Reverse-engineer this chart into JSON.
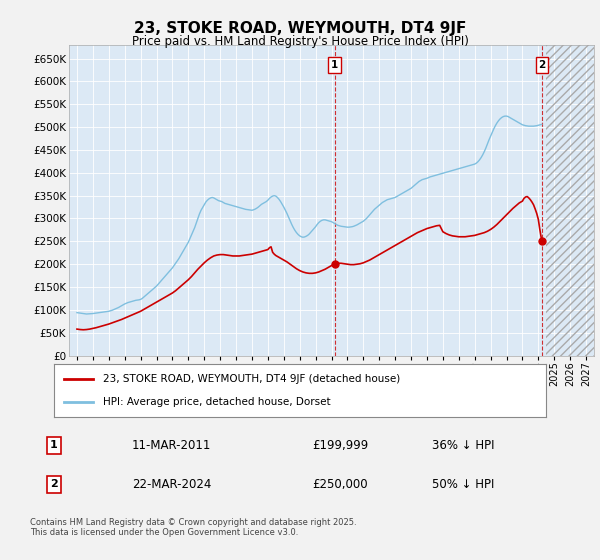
{
  "title": "23, STOKE ROAD, WEYMOUTH, DT4 9JF",
  "subtitle": "Price paid vs. HM Land Registry's House Price Index (HPI)",
  "legend_line1": "23, STOKE ROAD, WEYMOUTH, DT4 9JF (detached house)",
  "legend_line2": "HPI: Average price, detached house, Dorset",
  "annotation1_date": "11-MAR-2011",
  "annotation1_price": "£199,999",
  "annotation1_hpi": "36% ↓ HPI",
  "annotation1_year": 2011.19,
  "annotation1_value": 199999,
  "annotation2_date": "22-MAR-2024",
  "annotation2_price": "£250,000",
  "annotation2_hpi": "50% ↓ HPI",
  "annotation2_year": 2024.22,
  "annotation2_value": 250000,
  "hpi_color": "#7fbfdf",
  "price_color": "#cc0000",
  "background_color": "#f2f2f2",
  "plot_bg_color": "#dce9f5",
  "grid_color": "#ffffff",
  "ylim": [
    0,
    680000
  ],
  "yticks": [
    0,
    50000,
    100000,
    150000,
    200000,
    250000,
    300000,
    350000,
    400000,
    450000,
    500000,
    550000,
    600000,
    650000
  ],
  "xmin": 1994.5,
  "xmax": 2027.5,
  "xticks": [
    1995,
    1996,
    1997,
    1998,
    1999,
    2000,
    2001,
    2002,
    2003,
    2004,
    2005,
    2006,
    2007,
    2008,
    2009,
    2010,
    2011,
    2012,
    2013,
    2014,
    2015,
    2016,
    2017,
    2018,
    2019,
    2020,
    2021,
    2022,
    2023,
    2024,
    2025,
    2026,
    2027
  ],
  "footer": "Contains HM Land Registry data © Crown copyright and database right 2025.\nThis data is licensed under the Open Government Licence v3.0.",
  "hpi_data": [
    [
      1995.0,
      94000
    ],
    [
      1995.1,
      93500
    ],
    [
      1995.2,
      93000
    ],
    [
      1995.3,
      92500
    ],
    [
      1995.4,
      92000
    ],
    [
      1995.5,
      91500
    ],
    [
      1995.6,
      91000
    ],
    [
      1995.7,
      91200
    ],
    [
      1995.8,
      91400
    ],
    [
      1995.9,
      91600
    ],
    [
      1996.0,
      92000
    ],
    [
      1996.1,
      92500
    ],
    [
      1996.2,
      93000
    ],
    [
      1996.3,
      93500
    ],
    [
      1996.4,
      94000
    ],
    [
      1996.5,
      94500
    ],
    [
      1996.6,
      95000
    ],
    [
      1996.7,
      95500
    ],
    [
      1996.8,
      96000
    ],
    [
      1996.9,
      96500
    ],
    [
      1997.0,
      97000
    ],
    [
      1997.1,
      98000
    ],
    [
      1997.2,
      99000
    ],
    [
      1997.3,
      100500
    ],
    [
      1997.4,
      102000
    ],
    [
      1997.5,
      103500
    ],
    [
      1997.6,
      105000
    ],
    [
      1997.7,
      107000
    ],
    [
      1997.8,
      109000
    ],
    [
      1997.9,
      111000
    ],
    [
      1998.0,
      113000
    ],
    [
      1998.1,
      114500
    ],
    [
      1998.2,
      116000
    ],
    [
      1998.3,
      117000
    ],
    [
      1998.4,
      118000
    ],
    [
      1998.5,
      119000
    ],
    [
      1998.6,
      120000
    ],
    [
      1998.7,
      121000
    ],
    [
      1998.8,
      121500
    ],
    [
      1998.9,
      122000
    ],
    [
      1999.0,
      123000
    ],
    [
      1999.1,
      125000
    ],
    [
      1999.2,
      128000
    ],
    [
      1999.3,
      131000
    ],
    [
      1999.4,
      134000
    ],
    [
      1999.5,
      137000
    ],
    [
      1999.6,
      140000
    ],
    [
      1999.7,
      143000
    ],
    [
      1999.8,
      146000
    ],
    [
      1999.9,
      149000
    ],
    [
      2000.0,
      152000
    ],
    [
      2000.1,
      156000
    ],
    [
      2000.2,
      160000
    ],
    [
      2000.3,
      164000
    ],
    [
      2000.4,
      168000
    ],
    [
      2000.5,
      172000
    ],
    [
      2000.6,
      176000
    ],
    [
      2000.7,
      180000
    ],
    [
      2000.8,
      184000
    ],
    [
      2000.9,
      188000
    ],
    [
      2001.0,
      192000
    ],
    [
      2001.1,
      197000
    ],
    [
      2001.2,
      202000
    ],
    [
      2001.3,
      207000
    ],
    [
      2001.4,
      212000
    ],
    [
      2001.5,
      218000
    ],
    [
      2001.6,
      224000
    ],
    [
      2001.7,
      230000
    ],
    [
      2001.8,
      236000
    ],
    [
      2001.9,
      242000
    ],
    [
      2002.0,
      248000
    ],
    [
      2002.1,
      256000
    ],
    [
      2002.2,
      264000
    ],
    [
      2002.3,
      272000
    ],
    [
      2002.4,
      280000
    ],
    [
      2002.5,
      290000
    ],
    [
      2002.6,
      300000
    ],
    [
      2002.7,
      310000
    ],
    [
      2002.8,
      318000
    ],
    [
      2002.9,
      324000
    ],
    [
      2003.0,
      330000
    ],
    [
      2003.1,
      336000
    ],
    [
      2003.2,
      340000
    ],
    [
      2003.3,
      343000
    ],
    [
      2003.4,
      345000
    ],
    [
      2003.5,
      346000
    ],
    [
      2003.6,
      345000
    ],
    [
      2003.7,
      343000
    ],
    [
      2003.8,
      341000
    ],
    [
      2003.9,
      339000
    ],
    [
      2004.0,
      338000
    ],
    [
      2004.1,
      337000
    ],
    [
      2004.2,
      335000
    ],
    [
      2004.3,
      333000
    ],
    [
      2004.4,
      332000
    ],
    [
      2004.5,
      331000
    ],
    [
      2004.6,
      330000
    ],
    [
      2004.7,
      329000
    ],
    [
      2004.8,
      328000
    ],
    [
      2004.9,
      327000
    ],
    [
      2005.0,
      326000
    ],
    [
      2005.1,
      325000
    ],
    [
      2005.2,
      324000
    ],
    [
      2005.3,
      323000
    ],
    [
      2005.4,
      322000
    ],
    [
      2005.5,
      321000
    ],
    [
      2005.6,
      320000
    ],
    [
      2005.7,
      319500
    ],
    [
      2005.8,
      319000
    ],
    [
      2005.9,
      318500
    ],
    [
      2006.0,
      318000
    ],
    [
      2006.1,
      319000
    ],
    [
      2006.2,
      320500
    ],
    [
      2006.3,
      322500
    ],
    [
      2006.4,
      325000
    ],
    [
      2006.5,
      328000
    ],
    [
      2006.6,
      331000
    ],
    [
      2006.7,
      333000
    ],
    [
      2006.8,
      335000
    ],
    [
      2006.9,
      337000
    ],
    [
      2007.0,
      340000
    ],
    [
      2007.1,
      344000
    ],
    [
      2007.2,
      347000
    ],
    [
      2007.3,
      349000
    ],
    [
      2007.4,
      350000
    ],
    [
      2007.5,
      349000
    ],
    [
      2007.6,
      346000
    ],
    [
      2007.7,
      342000
    ],
    [
      2007.8,
      337000
    ],
    [
      2007.9,
      331000
    ],
    [
      2008.0,
      325000
    ],
    [
      2008.1,
      318000
    ],
    [
      2008.2,
      311000
    ],
    [
      2008.3,
      303000
    ],
    [
      2008.4,
      295000
    ],
    [
      2008.5,
      287000
    ],
    [
      2008.6,
      280000
    ],
    [
      2008.7,
      274000
    ],
    [
      2008.8,
      269000
    ],
    [
      2008.9,
      265000
    ],
    [
      2009.0,
      262000
    ],
    [
      2009.1,
      260000
    ],
    [
      2009.2,
      259000
    ],
    [
      2009.3,
      259500
    ],
    [
      2009.4,
      261000
    ],
    [
      2009.5,
      263000
    ],
    [
      2009.6,
      266000
    ],
    [
      2009.7,
      270000
    ],
    [
      2009.8,
      274000
    ],
    [
      2009.9,
      278000
    ],
    [
      2010.0,
      282000
    ],
    [
      2010.1,
      287000
    ],
    [
      2010.2,
      291000
    ],
    [
      2010.3,
      294000
    ],
    [
      2010.4,
      296000
    ],
    [
      2010.5,
      297000
    ],
    [
      2010.6,
      297000
    ],
    [
      2010.7,
      296000
    ],
    [
      2010.8,
      295000
    ],
    [
      2010.9,
      294000
    ],
    [
      2011.0,
      293000
    ],
    [
      2011.1,
      291000
    ],
    [
      2011.2,
      289000
    ],
    [
      2011.3,
      287000
    ],
    [
      2011.4,
      285000
    ],
    [
      2011.5,
      284000
    ],
    [
      2011.6,
      283000
    ],
    [
      2011.7,
      282500
    ],
    [
      2011.8,
      282000
    ],
    [
      2011.9,
      281500
    ],
    [
      2012.0,
      281000
    ],
    [
      2012.1,
      281000
    ],
    [
      2012.2,
      281500
    ],
    [
      2012.3,
      282000
    ],
    [
      2012.4,
      283000
    ],
    [
      2012.5,
      284500
    ],
    [
      2012.6,
      286000
    ],
    [
      2012.7,
      288000
    ],
    [
      2012.8,
      290000
    ],
    [
      2012.9,
      292000
    ],
    [
      2013.0,
      294000
    ],
    [
      2013.1,
      297000
    ],
    [
      2013.2,
      300000
    ],
    [
      2013.3,
      304000
    ],
    [
      2013.4,
      308000
    ],
    [
      2013.5,
      312000
    ],
    [
      2013.6,
      316000
    ],
    [
      2013.7,
      320000
    ],
    [
      2013.8,
      323000
    ],
    [
      2013.9,
      326000
    ],
    [
      2014.0,
      329000
    ],
    [
      2014.1,
      332000
    ],
    [
      2014.2,
      335000
    ],
    [
      2014.3,
      337000
    ],
    [
      2014.4,
      339000
    ],
    [
      2014.5,
      341000
    ],
    [
      2014.6,
      342000
    ],
    [
      2014.7,
      343000
    ],
    [
      2014.8,
      344000
    ],
    [
      2014.9,
      345000
    ],
    [
      2015.0,
      346000
    ],
    [
      2015.1,
      348000
    ],
    [
      2015.2,
      350000
    ],
    [
      2015.3,
      352000
    ],
    [
      2015.4,
      354000
    ],
    [
      2015.5,
      356000
    ],
    [
      2015.6,
      358000
    ],
    [
      2015.7,
      360000
    ],
    [
      2015.8,
      362000
    ],
    [
      2015.9,
      364000
    ],
    [
      2016.0,
      366000
    ],
    [
      2016.1,
      369000
    ],
    [
      2016.2,
      372000
    ],
    [
      2016.3,
      375000
    ],
    [
      2016.4,
      378000
    ],
    [
      2016.5,
      381000
    ],
    [
      2016.6,
      383000
    ],
    [
      2016.7,
      385000
    ],
    [
      2016.8,
      386000
    ],
    [
      2016.9,
      387000
    ],
    [
      2017.0,
      388000
    ],
    [
      2017.1,
      389500
    ],
    [
      2017.2,
      391000
    ],
    [
      2017.3,
      392000
    ],
    [
      2017.4,
      393000
    ],
    [
      2017.5,
      394000
    ],
    [
      2017.6,
      395000
    ],
    [
      2017.7,
      396000
    ],
    [
      2017.8,
      397000
    ],
    [
      2017.9,
      398000
    ],
    [
      2018.0,
      399000
    ],
    [
      2018.1,
      400000
    ],
    [
      2018.2,
      401000
    ],
    [
      2018.3,
      402000
    ],
    [
      2018.4,
      403000
    ],
    [
      2018.5,
      404000
    ],
    [
      2018.6,
      405000
    ],
    [
      2018.7,
      406000
    ],
    [
      2018.8,
      407000
    ],
    [
      2018.9,
      408000
    ],
    [
      2019.0,
      409000
    ],
    [
      2019.1,
      410000
    ],
    [
      2019.2,
      411000
    ],
    [
      2019.3,
      412000
    ],
    [
      2019.4,
      413000
    ],
    [
      2019.5,
      414000
    ],
    [
      2019.6,
      415000
    ],
    [
      2019.7,
      416000
    ],
    [
      2019.8,
      417000
    ],
    [
      2019.9,
      418000
    ],
    [
      2020.0,
      419000
    ],
    [
      2020.1,
      421000
    ],
    [
      2020.2,
      424000
    ],
    [
      2020.3,
      428000
    ],
    [
      2020.4,
      433000
    ],
    [
      2020.5,
      439000
    ],
    [
      2020.6,
      446000
    ],
    [
      2020.7,
      454000
    ],
    [
      2020.8,
      463000
    ],
    [
      2020.9,
      472000
    ],
    [
      2021.0,
      480000
    ],
    [
      2021.1,
      488000
    ],
    [
      2021.2,
      496000
    ],
    [
      2021.3,
      503000
    ],
    [
      2021.4,
      509000
    ],
    [
      2021.5,
      514000
    ],
    [
      2021.6,
      518000
    ],
    [
      2021.7,
      521000
    ],
    [
      2021.8,
      523000
    ],
    [
      2021.9,
      524000
    ],
    [
      2022.0,
      524000
    ],
    [
      2022.1,
      523000
    ],
    [
      2022.2,
      521000
    ],
    [
      2022.3,
      519000
    ],
    [
      2022.4,
      517000
    ],
    [
      2022.5,
      515000
    ],
    [
      2022.6,
      513000
    ],
    [
      2022.7,
      511000
    ],
    [
      2022.8,
      509000
    ],
    [
      2022.9,
      507000
    ],
    [
      2023.0,
      505000
    ],
    [
      2023.1,
      504000
    ],
    [
      2023.2,
      503000
    ],
    [
      2023.3,
      502500
    ],
    [
      2023.4,
      502000
    ],
    [
      2023.5,
      502000
    ],
    [
      2023.6,
      502000
    ],
    [
      2023.7,
      502000
    ],
    [
      2023.8,
      502500
    ],
    [
      2023.9,
      503000
    ],
    [
      2024.0,
      504000
    ],
    [
      2024.1,
      505000
    ],
    [
      2024.22,
      506000
    ]
  ],
  "price_data": [
    [
      1995.0,
      58000
    ],
    [
      1995.2,
      57000
    ],
    [
      1995.4,
      56500
    ],
    [
      1995.6,
      57000
    ],
    [
      1995.8,
      58000
    ],
    [
      1996.0,
      59500
    ],
    [
      1996.2,
      61000
    ],
    [
      1996.4,
      63000
    ],
    [
      1996.6,
      65000
    ],
    [
      1996.8,
      67000
    ],
    [
      1997.0,
      69000
    ],
    [
      1997.2,
      71500
    ],
    [
      1997.4,
      74000
    ],
    [
      1997.6,
      76500
    ],
    [
      1997.8,
      79000
    ],
    [
      1998.0,
      82000
    ],
    [
      1998.2,
      85000
    ],
    [
      1998.4,
      88000
    ],
    [
      1998.6,
      91000
    ],
    [
      1998.8,
      94000
    ],
    [
      1999.0,
      97000
    ],
    [
      1999.2,
      101000
    ],
    [
      1999.4,
      105000
    ],
    [
      1999.6,
      109000
    ],
    [
      1999.8,
      113000
    ],
    [
      2000.0,
      117000
    ],
    [
      2000.2,
      121000
    ],
    [
      2000.4,
      125000
    ],
    [
      2000.6,
      129000
    ],
    [
      2000.8,
      133000
    ],
    [
      2001.0,
      137000
    ],
    [
      2001.2,
      142000
    ],
    [
      2001.4,
      148000
    ],
    [
      2001.6,
      154000
    ],
    [
      2001.8,
      160000
    ],
    [
      2002.0,
      166000
    ],
    [
      2002.2,
      173000
    ],
    [
      2002.4,
      181000
    ],
    [
      2002.6,
      189000
    ],
    [
      2002.8,
      196000
    ],
    [
      2003.0,
      203000
    ],
    [
      2003.2,
      209000
    ],
    [
      2003.4,
      214000
    ],
    [
      2003.6,
      218000
    ],
    [
      2003.8,
      220000
    ],
    [
      2004.0,
      221000
    ],
    [
      2004.2,
      221000
    ],
    [
      2004.4,
      220000
    ],
    [
      2004.6,
      219000
    ],
    [
      2004.8,
      218000
    ],
    [
      2005.0,
      218000
    ],
    [
      2005.2,
      218000
    ],
    [
      2005.4,
      219000
    ],
    [
      2005.6,
      220000
    ],
    [
      2005.8,
      221000
    ],
    [
      2006.0,
      222000
    ],
    [
      2006.2,
      224000
    ],
    [
      2006.4,
      226000
    ],
    [
      2006.6,
      228000
    ],
    [
      2006.8,
      230000
    ],
    [
      2007.0,
      232000
    ],
    [
      2007.1,
      236000
    ],
    [
      2007.2,
      238000
    ],
    [
      2007.3,
      226000
    ],
    [
      2007.4,
      222000
    ],
    [
      2007.5,
      219000
    ],
    [
      2007.6,
      217000
    ],
    [
      2007.7,
      215000
    ],
    [
      2007.8,
      213000
    ],
    [
      2007.9,
      211000
    ],
    [
      2008.0,
      209000
    ],
    [
      2008.2,
      205000
    ],
    [
      2008.4,
      200000
    ],
    [
      2008.6,
      195000
    ],
    [
      2008.8,
      190000
    ],
    [
      2009.0,
      186000
    ],
    [
      2009.2,
      183000
    ],
    [
      2009.4,
      181000
    ],
    [
      2009.6,
      180000
    ],
    [
      2009.8,
      180000
    ],
    [
      2010.0,
      181000
    ],
    [
      2010.2,
      183000
    ],
    [
      2010.4,
      186000
    ],
    [
      2010.6,
      189000
    ],
    [
      2010.8,
      193000
    ],
    [
      2011.0,
      197000
    ],
    [
      2011.19,
      199999
    ],
    [
      2011.4,
      202000
    ],
    [
      2011.6,
      202000
    ],
    [
      2011.8,
      201000
    ],
    [
      2012.0,
      200000
    ],
    [
      2012.2,
      199000
    ],
    [
      2012.4,
      199000
    ],
    [
      2012.6,
      200000
    ],
    [
      2012.8,
      201000
    ],
    [
      2013.0,
      203000
    ],
    [
      2013.2,
      206000
    ],
    [
      2013.4,
      209000
    ],
    [
      2013.6,
      213000
    ],
    [
      2013.8,
      217000
    ],
    [
      2014.0,
      221000
    ],
    [
      2014.2,
      225000
    ],
    [
      2014.4,
      229000
    ],
    [
      2014.6,
      233000
    ],
    [
      2014.8,
      237000
    ],
    [
      2015.0,
      241000
    ],
    [
      2015.2,
      245000
    ],
    [
      2015.4,
      249000
    ],
    [
      2015.6,
      253000
    ],
    [
      2015.8,
      257000
    ],
    [
      2016.0,
      261000
    ],
    [
      2016.2,
      265000
    ],
    [
      2016.4,
      269000
    ],
    [
      2016.6,
      272000
    ],
    [
      2016.8,
      275000
    ],
    [
      2017.0,
      278000
    ],
    [
      2017.2,
      280000
    ],
    [
      2017.4,
      282000
    ],
    [
      2017.6,
      284000
    ],
    [
      2017.8,
      285000
    ],
    [
      2018.0,
      271000
    ],
    [
      2018.2,
      267000
    ],
    [
      2018.4,
      264000
    ],
    [
      2018.6,
      262000
    ],
    [
      2018.8,
      261000
    ],
    [
      2019.0,
      260000
    ],
    [
      2019.2,
      260000
    ],
    [
      2019.4,
      260000
    ],
    [
      2019.6,
      261000
    ],
    [
      2019.8,
      262000
    ],
    [
      2020.0,
      263000
    ],
    [
      2020.2,
      265000
    ],
    [
      2020.4,
      267000
    ],
    [
      2020.6,
      269000
    ],
    [
      2020.8,
      272000
    ],
    [
      2021.0,
      276000
    ],
    [
      2021.2,
      281000
    ],
    [
      2021.4,
      287000
    ],
    [
      2021.6,
      294000
    ],
    [
      2021.8,
      301000
    ],
    [
      2022.0,
      308000
    ],
    [
      2022.2,
      315000
    ],
    [
      2022.4,
      322000
    ],
    [
      2022.6,
      328000
    ],
    [
      2022.8,
      334000
    ],
    [
      2023.0,
      338000
    ],
    [
      2023.1,
      344000
    ],
    [
      2023.2,
      347000
    ],
    [
      2023.3,
      348000
    ],
    [
      2023.4,
      345000
    ],
    [
      2023.5,
      341000
    ],
    [
      2023.6,
      336000
    ],
    [
      2023.7,
      330000
    ],
    [
      2023.8,
      321000
    ],
    [
      2023.9,
      311000
    ],
    [
      2024.0,
      298000
    ],
    [
      2024.1,
      275000
    ],
    [
      2024.22,
      250000
    ]
  ]
}
